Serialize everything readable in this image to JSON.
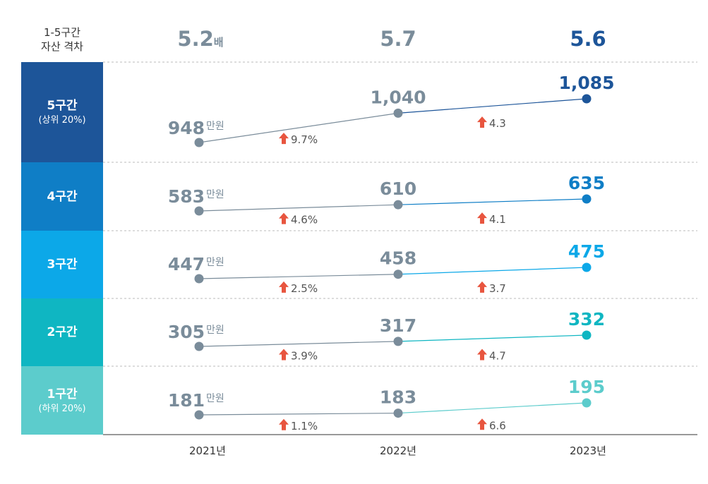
{
  "header": {
    "ratio_line1": "1-5구간",
    "ratio_line2": "자산 격차"
  },
  "ratios": [
    {
      "value": "5.2",
      "unit": "배"
    },
    {
      "value": "5.7",
      "unit": ""
    },
    {
      "value": "5.6",
      "unit": ""
    }
  ],
  "bands": [
    {
      "label": "5구간",
      "sub": "(상위 20%)",
      "color": "#1d5599"
    },
    {
      "label": "4구간",
      "sub": "",
      "color": "#0f7ec6"
    },
    {
      "label": "3구간",
      "sub": "",
      "color": "#0ca8e8"
    },
    {
      "label": "2구간",
      "sub": "",
      "color": "#0fb6c2"
    },
    {
      "label": "1구간",
      "sub": "(하위 20%)",
      "color": "#5ccccc"
    }
  ],
  "colors": {
    "gray_point": "#7a8c9a",
    "arrow": "#e8553f",
    "pct_text": "#555555",
    "divider": "#bbbbbb",
    "axis": "#333333"
  },
  "chart_data": {
    "type": "line",
    "title": "1-5구간 자산 격차",
    "x": [
      "2021년",
      "2022년",
      "2023년"
    ],
    "unit_label": "만원",
    "series": [
      {
        "name": "5구간 (상위 20%)",
        "values": [
          948,
          1040,
          1085
        ],
        "value_labels": [
          "948",
          "1,040",
          "1,085"
        ],
        "changes": [
          "9.7%",
          "4.3"
        ],
        "color": "#1d5599"
      },
      {
        "name": "4구간",
        "values": [
          583,
          610,
          635
        ],
        "value_labels": [
          "583",
          "610",
          "635"
        ],
        "changes": [
          "4.6%",
          "4.1"
        ],
        "color": "#0f7ec6"
      },
      {
        "name": "3구간",
        "values": [
          447,
          458,
          475
        ],
        "value_labels": [
          "447",
          "458",
          "475"
        ],
        "changes": [
          "2.5%",
          "3.7"
        ],
        "color": "#0ca8e8"
      },
      {
        "name": "2구간",
        "values": [
          305,
          317,
          332
        ],
        "value_labels": [
          "305",
          "317",
          "332"
        ],
        "changes": [
          "3.9%",
          "4.7"
        ],
        "color": "#0fb6c2"
      },
      {
        "name": "1구간 (하위 20%)",
        "values": [
          181,
          183,
          195
        ],
        "value_labels": [
          "181",
          "183",
          "195"
        ],
        "changes": [
          "1.1%",
          "6.6"
        ],
        "color": "#5ccccc"
      }
    ]
  }
}
